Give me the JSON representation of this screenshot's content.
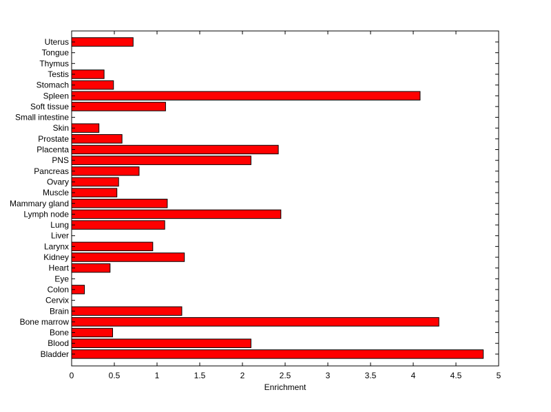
{
  "chart_data": {
    "type": "bar",
    "orientation": "horizontal",
    "title": "",
    "xlabel": "Enrichment",
    "ylabel": "",
    "xlim": [
      0,
      5
    ],
    "xticks": [
      {
        "value": 0,
        "label": "0"
      },
      {
        "value": 0.5,
        "label": "0.5"
      },
      {
        "value": 1,
        "label": "1"
      },
      {
        "value": 1.5,
        "label": "1.5"
      },
      {
        "value": 2,
        "label": "2"
      },
      {
        "value": 2.5,
        "label": "2.5"
      },
      {
        "value": 3,
        "label": "3"
      },
      {
        "value": 3.5,
        "label": "3.5"
      },
      {
        "value": 4,
        "label": "4"
      },
      {
        "value": 4.5,
        "label": "4.5"
      },
      {
        "value": 5,
        "label": "5"
      }
    ],
    "categories": [
      "Uterus",
      "Tongue",
      "Thymus",
      "Testis",
      "Stomach",
      "Spleen",
      "Soft tissue",
      "Small intestine",
      "Skin",
      "Prostate",
      "Placenta",
      "PNS",
      "Pancreas",
      "Ovary",
      "Muscle",
      "Mammary gland",
      "Lymph node",
      "Lung",
      "Liver",
      "Larynx",
      "Kidney",
      "Heart",
      "Eye",
      "Colon",
      "Cervix",
      "Brain",
      "Bone marrow",
      "Bone",
      "Blood",
      "Bladder"
    ],
    "values": [
      0.72,
      0,
      0,
      0.38,
      0.49,
      4.08,
      1.1,
      0,
      0.32,
      0.59,
      2.42,
      2.1,
      0.79,
      0.55,
      0.53,
      1.12,
      2.45,
      1.09,
      0,
      0.95,
      1.32,
      0.45,
      0,
      0.15,
      0,
      1.29,
      4.3,
      0.48,
      2.1,
      4.82
    ],
    "bar_color": "#ff0000",
    "grid": false,
    "legend": "none"
  }
}
